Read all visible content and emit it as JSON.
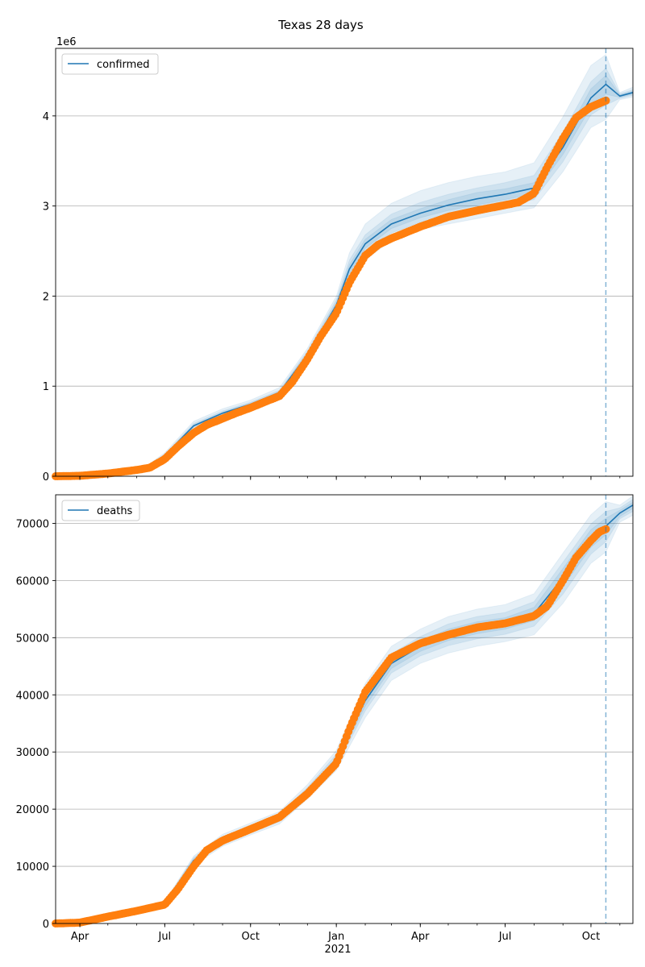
{
  "figure": {
    "title": "Texas 28 days",
    "x_year_label": "2021"
  },
  "colors": {
    "model": "#1f77b4",
    "observed": "#ff7f0e",
    "band": "#1f77b4",
    "grid": "#b0b0b0"
  },
  "chart_data": [
    {
      "type": "line",
      "name": "confirmed-panel",
      "ylabel": "",
      "y_offset_label": "1e6",
      "ylim": [
        0,
        4750000
      ],
      "yticks": [
        0,
        1000000,
        2000000,
        3000000,
        4000000
      ],
      "ytick_labels": [
        "0",
        "1",
        "2",
        "3",
        "4"
      ],
      "xlim": [
        "2020-03-06",
        "2021-11-15"
      ],
      "xticks": [
        "2020-04-01",
        "2020-07-01",
        "2020-10-01",
        "2021-01-01",
        "2021-04-01",
        "2021-07-01",
        "2021-10-01"
      ],
      "xtick_labels": [
        "Apr",
        "Jul",
        "Oct",
        "Jan",
        "Apr",
        "Jul",
        "Oct"
      ],
      "forecast_start": "2021-10-17",
      "grid": "horizontal",
      "legend": {
        "position": "upper-left",
        "entries": [
          "confirmed"
        ]
      },
      "model": {
        "x": [
          "2020-06-15",
          "2020-07-01",
          "2020-08-01",
          "2020-09-01",
          "2020-10-01",
          "2020-11-01",
          "2020-12-01",
          "2021-01-01",
          "2021-01-15",
          "2021-02-01",
          "2021-03-01",
          "2021-04-01",
          "2021-05-01",
          "2021-06-01",
          "2021-07-01",
          "2021-08-01",
          "2021-09-01",
          "2021-10-01",
          "2021-10-17",
          "2021-11-01",
          "2021-11-15"
        ],
        "y": [
          120000,
          230000,
          560000,
          700000,
          800000,
          930000,
          1350000,
          1900000,
          2300000,
          2580000,
          2800000,
          2920000,
          3010000,
          3080000,
          3130000,
          3200000,
          3650000,
          4200000,
          4350000,
          4220000,
          4260000
        ],
        "bands": [
          {
            "lower": [
              100000,
              205000,
              520000,
              660000,
              760000,
              890000,
              1280000,
              1800000,
              2150000,
              2400000,
              2620000,
              2740000,
              2800000,
              2860000,
              2920000,
              2980000,
              3380000,
              3870000,
              3960000,
              4180000,
              4210000
            ],
            "upper": [
              140000,
              260000,
              610000,
              750000,
              845000,
              985000,
              1420000,
              2000000,
              2480000,
              2800000,
              3030000,
              3170000,
              3260000,
              3330000,
              3380000,
              3480000,
              3990000,
              4560000,
              4680000,
              4260000,
              4320000
            ]
          },
          {
            "lower": [
              110000,
              218000,
              540000,
              680000,
              780000,
              910000,
              1310000,
              1840000,
              2210000,
              2480000,
              2700000,
              2820000,
              2890000,
              2950000,
              3010000,
              3070000,
              3490000,
              4010000,
              4120000,
              4195000,
              4230000
            ],
            "upper": [
              130000,
              243000,
              585000,
              725000,
              822000,
              955000,
              1390000,
              1960000,
              2400000,
              2680000,
              2910000,
              3040000,
              3130000,
              3200000,
              3260000,
              3340000,
              3820000,
              4380000,
              4530000,
              4245000,
              4290000
            ]
          },
          {
            "lower": [
              115000,
              224000,
              550000,
              690000,
              790000,
              920000,
              1330000,
              1870000,
              2250000,
              2530000,
              2750000,
              2870000,
              2950000,
              3010000,
              3070000,
              3140000,
              3570000,
              4100000,
              4240000,
              4205000,
              4245000
            ],
            "upper": [
              125000,
              236000,
              570000,
              710000,
              810000,
              940000,
              1370000,
              1930000,
              2350000,
              2630000,
              2850000,
              2970000,
              3070000,
              3150000,
              3190000,
              3260000,
              3730000,
              4300000,
              4450000,
              4235000,
              4275000
            ]
          }
        ]
      },
      "observed": {
        "x": [
          "2020-03-06",
          "2020-04-01",
          "2020-05-01",
          "2020-06-01",
          "2020-06-15",
          "2020-07-01",
          "2020-07-15",
          "2020-08-01",
          "2020-08-15",
          "2020-09-01",
          "2020-09-15",
          "2020-10-01",
          "2020-10-15",
          "2020-11-01",
          "2020-11-15",
          "2020-12-01",
          "2020-12-15",
          "2021-01-01",
          "2021-01-15",
          "2021-02-01",
          "2021-02-15",
          "2021-03-01",
          "2021-04-01",
          "2021-05-01",
          "2021-06-01",
          "2021-07-01",
          "2021-07-15",
          "2021-08-01",
          "2021-08-15",
          "2021-09-01",
          "2021-09-15",
          "2021-10-01",
          "2021-10-17"
        ],
        "y": [
          0,
          5000,
          30000,
          70000,
          95000,
          190000,
          330000,
          480000,
          570000,
          640000,
          700000,
          760000,
          820000,
          890000,
          1050000,
          1300000,
          1550000,
          1810000,
          2150000,
          2450000,
          2570000,
          2640000,
          2770000,
          2880000,
          2950000,
          3010000,
          3040000,
          3140000,
          3430000,
          3750000,
          3980000,
          4100000,
          4170000
        ]
      }
    },
    {
      "type": "line",
      "name": "deaths-panel",
      "ylabel": "",
      "ylim": [
        0,
        75000
      ],
      "yticks": [
        0,
        10000,
        20000,
        30000,
        40000,
        50000,
        60000,
        70000
      ],
      "ytick_labels": [
        "0",
        "10000",
        "20000",
        "30000",
        "40000",
        "50000",
        "60000",
        "70000"
      ],
      "xlim": [
        "2020-03-06",
        "2021-11-15"
      ],
      "xticks": [
        "2020-04-01",
        "2020-07-01",
        "2020-10-01",
        "2021-01-01",
        "2021-04-01",
        "2021-07-01",
        "2021-10-01"
      ],
      "xtick_labels": [
        "Apr",
        "Jul",
        "Oct",
        "Jan",
        "Apr",
        "Jul",
        "Oct"
      ],
      "forecast_start": "2021-10-17",
      "grid": "horizontal",
      "legend": {
        "position": "upper-left",
        "entries": [
          "deaths"
        ]
      },
      "model": {
        "x": [
          "2020-07-01",
          "2020-08-01",
          "2020-09-01",
          "2020-10-01",
          "2020-11-01",
          "2020-12-01",
          "2021-01-01",
          "2021-02-01",
          "2021-03-01",
          "2021-04-01",
          "2021-05-01",
          "2021-06-01",
          "2021-07-01",
          "2021-08-01",
          "2021-09-01",
          "2021-10-01",
          "2021-10-17",
          "2021-11-01",
          "2021-11-15"
        ],
        "y": [
          3500,
          11000,
          14500,
          16500,
          18500,
          23000,
          28500,
          39000,
          45500,
          48500,
          50500,
          51800,
          52500,
          54200,
          60500,
          67500,
          69500,
          71800,
          73200
        ],
        "bands": [
          {
            "lower": [
              3200,
              10200,
              13500,
              15500,
              17400,
              21800,
              26800,
              36000,
              42500,
              45500,
              47300,
              48500,
              49300,
              50500,
              56000,
              63000,
              65000,
              70200,
              71400
            ],
            "upper": [
              3800,
              11800,
              15600,
              17600,
              19600,
              24300,
              30300,
              42000,
              48500,
              51500,
              53700,
              55000,
              55800,
              57700,
              64800,
              71500,
              73800,
              73200,
              74800
            ]
          },
          {
            "lower": [
              3300,
              10500,
              13900,
              15900,
              17800,
              22300,
              27400,
              37200,
              43800,
              46800,
              48600,
              49800,
              50600,
              52000,
              57600,
              64600,
              66800,
              70800,
              72100
            ],
            "upper": [
              3700,
              11500,
              15200,
              17200,
              19200,
              23800,
              29600,
              40800,
              47200,
              50200,
              52400,
              53700,
              54400,
              56300,
              63200,
              69900,
              72100,
              72700,
              74200
            ]
          },
          {
            "lower": [
              3400,
              10700,
              14200,
              16200,
              18100,
              22600,
              27900,
              38000,
              44600,
              47600,
              49500,
              50700,
              51500,
              53000,
              58900,
              65800,
              68000,
              71200,
              72600
            ],
            "upper": [
              3600,
              11300,
              14800,
              16800,
              18900,
              23400,
              29100,
              40000,
              46400,
              49400,
              51500,
              52800,
              53500,
              55300,
              62100,
              68900,
              70900,
              72300,
              73700
            ]
          }
        ]
      },
      "observed": {
        "x": [
          "2020-03-06",
          "2020-04-01",
          "2020-05-01",
          "2020-06-01",
          "2020-07-01",
          "2020-07-15",
          "2020-08-01",
          "2020-08-15",
          "2020-09-01",
          "2020-10-01",
          "2020-11-01",
          "2020-12-01",
          "2021-01-01",
          "2021-01-15",
          "2021-02-01",
          "2021-02-15",
          "2021-03-01",
          "2021-04-01",
          "2021-05-01",
          "2021-06-01",
          "2021-07-01",
          "2021-08-01",
          "2021-08-15",
          "2021-09-01",
          "2021-09-15",
          "2021-10-01",
          "2021-10-10",
          "2021-10-17"
        ],
        "y": [
          0,
          150,
          1200,
          2200,
          3300,
          6000,
          10000,
          12800,
          14500,
          16500,
          18600,
          22700,
          28000,
          34000,
          40500,
          43500,
          46500,
          49000,
          50500,
          51800,
          52500,
          53800,
          55500,
          60000,
          64000,
          67000,
          68500,
          69000
        ]
      }
    }
  ]
}
